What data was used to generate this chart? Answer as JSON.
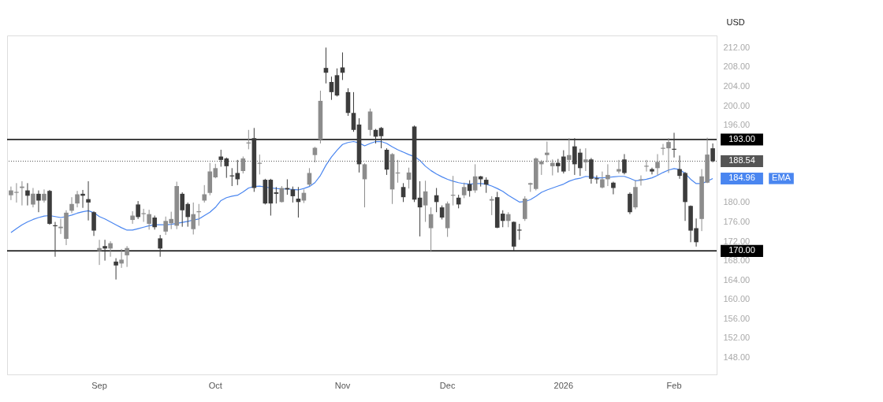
{
  "chart_data": {
    "type": "candlestick",
    "ylabel": "USD",
    "categories": [
      null,
      null,
      null,
      null,
      null,
      null,
      null,
      null,
      null,
      null,
      null,
      null,
      null,
      null,
      null,
      null,
      "Sep",
      null,
      null,
      null,
      null,
      null,
      null,
      null,
      null,
      null,
      null,
      null,
      null,
      null,
      null,
      null,
      null,
      null,
      null,
      null,
      null,
      "Oct",
      null,
      null,
      null,
      null,
      null,
      null,
      null,
      null,
      null,
      null,
      null,
      null,
      null,
      null,
      null,
      null,
      null,
      null,
      null,
      null,
      null,
      null,
      "Nov",
      null,
      null,
      null,
      null,
      null,
      null,
      null,
      null,
      null,
      null,
      null,
      null,
      null,
      null,
      null,
      null,
      null,
      null,
      "Dec",
      null,
      null,
      null,
      null,
      null,
      null,
      null,
      null,
      null,
      null,
      null,
      null,
      null,
      null,
      null,
      null,
      null,
      null,
      null,
      null,
      "2026",
      null,
      null,
      null,
      null,
      null,
      null,
      null,
      null,
      null,
      null,
      null,
      null,
      null,
      null,
      null,
      null,
      null,
      null,
      null,
      "Feb",
      null,
      null,
      null,
      null,
      null,
      null,
      null
    ],
    "ohlc": [
      [
        181.5,
        183.3,
        180.5,
        182.5
      ],
      [
        182,
        184,
        180,
        182.2
      ],
      [
        183,
        184.4,
        179.4,
        183.3
      ],
      [
        182.5,
        184,
        179.4,
        181.4
      ],
      [
        179.6,
        183,
        179,
        181.8
      ],
      [
        181.8,
        182.5,
        178,
        180.4
      ],
      [
        180.4,
        182.7,
        180,
        181.8
      ],
      [
        182.4,
        182.6,
        175.4,
        175.6
      ],
      [
        175.3,
        176,
        168.8,
        175.1
      ],
      [
        174.7,
        176.6,
        173.5,
        175
      ],
      [
        172.5,
        178.4,
        171.2,
        177.9
      ],
      [
        178.3,
        181.1,
        177.8,
        179.7
      ],
      [
        179.8,
        182.4,
        179,
        181.7
      ],
      [
        181.8,
        182.6,
        178.9,
        181.4
      ],
      [
        180.7,
        184.4,
        176.3,
        180
      ],
      [
        178,
        178.2,
        173.1,
        174.2
      ],
      [
        170,
        172.3,
        167.1,
        170.6
      ],
      [
        171,
        172.3,
        168,
        170.5
      ],
      [
        170.5,
        172,
        168.8,
        171.6
      ],
      [
        167.8,
        168.5,
        164.1,
        167
      ],
      [
        167.4,
        170.4,
        166.5,
        168.2
      ],
      [
        169.1,
        171,
        166.7,
        170.6
      ],
      [
        176.4,
        178.2,
        175.6,
        177.3
      ],
      [
        179.6,
        180.3,
        176.6,
        177
      ],
      [
        177.6,
        178.7,
        176,
        177.8
      ],
      [
        175.6,
        178.5,
        174.4,
        177.6
      ],
      [
        176.9,
        177.3,
        174.4,
        174.9
      ],
      [
        172.6,
        173.3,
        168.8,
        170.5
      ],
      [
        174,
        177.1,
        173.3,
        176.2
      ],
      [
        175.7,
        178.1,
        174.5,
        176.6
      ],
      [
        175.2,
        184.3,
        174.5,
        183.4
      ],
      [
        181.8,
        182.1,
        175,
        178.4
      ],
      [
        179.7,
        180,
        175,
        177
      ],
      [
        174.5,
        180,
        173.4,
        177.6
      ],
      [
        178,
        179.7,
        175.2,
        178.2
      ],
      [
        180.4,
        183.6,
        180,
        181.7
      ],
      [
        182,
        188.2,
        181.5,
        186.4
      ],
      [
        185.2,
        188,
        185,
        187.1
      ],
      [
        189.5,
        190.9,
        187.4,
        188.8
      ],
      [
        189.1,
        189.3,
        185.1,
        187.5
      ],
      [
        185.6,
        187.1,
        183.4,
        185.4
      ],
      [
        186.1,
        188.8,
        183.6,
        184.8
      ],
      [
        186.5,
        189.5,
        186,
        189.1
      ],
      [
        192.2,
        195,
        191,
        192.4
      ],
      [
        193.3,
        195.4,
        182.2,
        183
      ],
      [
        188,
        189.9,
        185.8,
        188.2
      ],
      [
        184.7,
        184.9,
        179.6,
        179.8
      ],
      [
        184.7,
        184.9,
        177.3,
        179.8
      ],
      [
        182.1,
        183.2,
        179.8,
        181.8
      ],
      [
        180.1,
        183.4,
        180,
        183
      ],
      [
        183,
        184.8,
        181.6,
        182.7
      ],
      [
        182.7,
        183.3,
        180,
        181.3
      ],
      [
        180.8,
        183.2,
        176.9,
        180.1
      ],
      [
        180.4,
        182.7,
        179.9,
        182
      ],
      [
        183.7,
        187.1,
        183.4,
        186.1
      ],
      [
        189.8,
        191.5,
        188.3,
        191.3
      ],
      [
        193,
        203.1,
        192.2,
        201
      ],
      [
        207.8,
        212,
        204.6,
        206.8
      ],
      [
        204.9,
        206,
        201.2,
        202.8
      ],
      [
        206.3,
        207.7,
        201.9,
        202.1
      ],
      [
        207.9,
        211,
        205.3,
        206.8
      ],
      [
        202.8,
        203.6,
        197.9,
        198.5
      ],
      [
        198.5,
        202.8,
        194.6,
        195
      ],
      [
        196.1,
        197.4,
        186.2,
        187.9
      ],
      [
        184.8,
        188.1,
        179,
        187.9
      ],
      [
        195,
        199.4,
        193.8,
        198.8
      ],
      [
        195,
        195.2,
        192.2,
        193.6
      ],
      [
        195.4,
        195.6,
        191.2,
        193.7
      ],
      [
        190.9,
        191.2,
        185.7,
        186.8
      ],
      [
        182.7,
        190.2,
        179.7,
        190
      ],
      [
        186,
        188.8,
        184.1,
        186.2
      ],
      [
        183.2,
        184,
        180.1,
        181.1
      ],
      [
        184.7,
        187.2,
        182.9,
        186.2
      ],
      [
        195.7,
        195.9,
        180.1,
        180.6
      ],
      [
        181,
        184.4,
        173,
        179
      ],
      [
        179.4,
        184.5,
        176,
        182.3
      ],
      [
        174.7,
        179,
        169.8,
        177.6
      ],
      [
        181.5,
        183,
        178,
        180.1
      ],
      [
        179,
        179.4,
        176.5,
        176.9
      ],
      [
        174.7,
        180.2,
        172.9,
        179.8
      ],
      [
        181.4,
        185.5,
        179.4,
        181.6
      ],
      [
        181,
        181.6,
        178.8,
        179.6
      ],
      [
        181.5,
        184.1,
        180.9,
        183.2
      ],
      [
        183.8,
        184.6,
        181.2,
        182.4
      ],
      [
        182.5,
        187.9,
        182,
        185.4
      ],
      [
        185.4,
        185.5,
        183.3,
        184.8
      ],
      [
        184.7,
        185.2,
        182,
        183.7
      ],
      [
        180.4,
        181.3,
        177.4,
        180.7
      ],
      [
        181.1,
        182.2,
        174.7,
        174.8
      ],
      [
        177.7,
        178.4,
        174.9,
        176.2
      ],
      [
        176.2,
        178,
        174.9,
        177.6
      ],
      [
        176,
        176.1,
        170.1,
        170.9
      ],
      [
        174.4,
        175.6,
        172.3,
        174.2
      ],
      [
        176.6,
        181.3,
        176.2,
        180.8
      ],
      [
        183.7,
        184.1,
        182.2,
        184
      ],
      [
        182.8,
        189.3,
        182.5,
        189.1
      ],
      [
        187.9,
        188.8,
        185.7,
        188.5
      ],
      [
        189.8,
        192.6,
        188.3,
        190.3
      ],
      [
        187.5,
        188.9,
        185.6,
        188.2
      ],
      [
        188.2,
        189,
        186.2,
        187.5
      ],
      [
        189.5,
        190.8,
        186,
        186.4
      ],
      [
        188.8,
        193.3,
        186.5,
        189.8
      ],
      [
        191.6,
        193.3,
        185.7,
        187.9
      ],
      [
        190.3,
        191.1,
        185.5,
        187.1
      ],
      [
        188.3,
        191.2,
        186.5,
        188.9
      ],
      [
        188.9,
        189.2,
        183.9,
        184.9
      ],
      [
        185,
        185.6,
        183.9,
        184.8
      ],
      [
        183.1,
        186.4,
        182.9,
        184.8
      ],
      [
        184.8,
        187.9,
        183.4,
        185.7
      ],
      [
        184.1,
        184.3,
        181.7,
        183
      ],
      [
        186.4,
        188.8,
        186,
        186.9
      ],
      [
        188.9,
        190,
        185.8,
        186.1
      ],
      [
        181.8,
        182.1,
        177.6,
        178
      ],
      [
        179,
        184.6,
        178.6,
        183.2
      ],
      [
        184.6,
        185.6,
        183.5,
        184.8
      ],
      [
        187.4,
        188.8,
        186.4,
        187.6
      ],
      [
        186.9,
        187.2,
        185.8,
        186.4
      ],
      [
        187.1,
        190,
        185.7,
        188.4
      ],
      [
        191.1,
        192.1,
        189.8,
        191.3
      ],
      [
        191.2,
        193.3,
        186.1,
        192.5
      ],
      [
        191.1,
        194.4,
        189.3,
        190.9
      ],
      [
        186.9,
        189.7,
        184.9,
        185.5
      ],
      [
        186.1,
        186.3,
        176.2,
        180.1
      ],
      [
        179.3,
        179.4,
        171.8,
        174.2
      ],
      [
        174.7,
        176.7,
        170.9,
        171.8
      ],
      [
        176.6,
        186.9,
        174.1,
        185.4
      ],
      [
        184.1,
        193.4,
        184,
        189.9
      ],
      [
        191.2,
        192.2,
        188.3,
        188.54
      ]
    ],
    "colors": [
      "#8c8c8c",
      "#8c8c8c",
      "#8c8c8c",
      "#3c3c3c",
      "#8c8c8c",
      "#3c3c3c",
      "#8c8c8c",
      "#3c3c3c",
      "#3c3c3c",
      "#8c8c8c",
      "#8c8c8c",
      "#8c8c8c",
      "#8c8c8c",
      "#3c3c3c",
      "#3c3c3c",
      "#3c3c3c",
      "#8c8c8c",
      "#3c3c3c",
      "#8c8c8c",
      "#3c3c3c",
      "#8c8c8c",
      "#8c8c8c",
      "#8c8c8c",
      "#3c3c3c",
      "#8c8c8c",
      "#8c8c8c",
      "#3c3c3c",
      "#3c3c3c",
      "#8c8c8c",
      "#8c8c8c",
      "#8c8c8c",
      "#3c3c3c",
      "#3c3c3c",
      "#8c8c8c",
      "#8c8c8c",
      "#8c8c8c",
      "#8c8c8c",
      "#8c8c8c",
      "#3c3c3c",
      "#3c3c3c",
      "#3c3c3c",
      "#3c3c3c",
      "#8c8c8c",
      "#8c8c8c",
      "#3c3c3c",
      "#8c8c8c",
      "#3c3c3c",
      "#3c3c3c",
      "#3c3c3c",
      "#8c8c8c",
      "#3c3c3c",
      "#3c3c3c",
      "#3c3c3c",
      "#8c8c8c",
      "#8c8c8c",
      "#8c8c8c",
      "#8c8c8c",
      "#3c3c3c",
      "#3c3c3c",
      "#3c3c3c",
      "#3c3c3c",
      "#3c3c3c",
      "#3c3c3c",
      "#3c3c3c",
      "#8c8c8c",
      "#8c8c8c",
      "#3c3c3c",
      "#3c3c3c",
      "#3c3c3c",
      "#8c8c8c",
      "#8c8c8c",
      "#3c3c3c",
      "#8c8c8c",
      "#3c3c3c",
      "#3c3c3c",
      "#8c8c8c",
      "#8c8c8c",
      "#3c3c3c",
      "#3c3c3c",
      "#8c8c8c",
      "#8c8c8c",
      "#3c3c3c",
      "#8c8c8c",
      "#3c3c3c",
      "#8c8c8c",
      "#3c3c3c",
      "#3c3c3c",
      "#8c8c8c",
      "#3c3c3c",
      "#3c3c3c",
      "#8c8c8c",
      "#3c3c3c",
      "#3c3c3c",
      "#8c8c8c",
      "#8c8c8c",
      "#8c8c8c",
      "#8c8c8c",
      "#8c8c8c",
      "#8c8c8c",
      "#3c3c3c",
      "#3c3c3c",
      "#8c8c8c",
      "#3c3c3c",
      "#3c3c3c",
      "#8c8c8c",
      "#3c3c3c",
      "#3c3c3c",
      "#8c8c8c",
      "#8c8c8c",
      "#3c3c3c",
      "#8c8c8c",
      "#3c3c3c",
      "#3c3c3c",
      "#8c8c8c",
      "#8c8c8c",
      "#8c8c8c",
      "#3c3c3c",
      "#8c8c8c",
      "#8c8c8c",
      "#8c8c8c",
      "#3c3c3c",
      "#3c3c3c",
      "#3c3c3c",
      "#3c3c3c",
      "#3c3c3c",
      "#8c8c8c",
      "#8c8c8c",
      "#3c3c3c"
    ],
    "series": [
      {
        "name": "EMA",
        "type": "line",
        "color": "#4a86f0",
        "values": [
          173.8,
          174.6,
          175.4,
          176,
          176.5,
          176.9,
          177.2,
          177.3,
          177.1,
          176.9,
          177.1,
          177.4,
          177.8,
          178.1,
          178.3,
          177.9,
          177.1,
          176.6,
          176,
          175.4,
          174.8,
          174.3,
          174.3,
          174.6,
          174.9,
          175.2,
          175.4,
          175.4,
          175.4,
          175.5,
          175.7,
          175.9,
          176.1,
          176.4,
          176.6,
          177.3,
          178,
          179,
          180.4,
          181,
          181.3,
          181.5,
          182.2,
          183,
          183.3,
          183.4,
          183.2,
          183,
          182.9,
          182.8,
          182.8,
          182.7,
          182.6,
          182.9,
          183.3,
          184.1,
          185.6,
          187.7,
          189.4,
          190.8,
          192,
          192.4,
          192.6,
          192.3,
          191.7,
          192.2,
          192.6,
          192.6,
          192.2,
          191.5,
          190.9,
          190.4,
          189.9,
          189.5,
          188.7,
          187.5,
          186.6,
          185.9,
          185.3,
          184.8,
          184.4,
          184.1,
          183.9,
          183.8,
          183.9,
          183.9,
          183.8,
          183.4,
          182.9,
          182.3,
          181.5,
          180.8,
          180.1,
          180.2,
          180.6,
          181.3,
          182.1,
          182.6,
          183,
          183.4,
          183.8,
          184.4,
          184.8,
          185,
          185.4,
          185.3,
          185.1,
          185.1,
          185.2,
          185.3,
          185.4,
          185.4,
          185,
          184.5,
          184.6,
          184.8,
          185.1,
          185.6,
          186.2,
          186.7,
          187,
          186.8,
          186,
          184.8,
          183.9,
          183.9,
          184.4,
          184.96
        ]
      }
    ],
    "ylim": [
      144.5,
      214.5
    ],
    "yticks": [
      {
        "value": 148,
        "label": "148.00"
      },
      {
        "value": 152,
        "label": "152.00"
      },
      {
        "value": 156,
        "label": "156.00"
      },
      {
        "value": 160,
        "label": "160.00"
      },
      {
        "value": 164,
        "label": "164.00"
      },
      {
        "value": 168,
        "label": "168.00"
      },
      {
        "value": 172,
        "label": "172.00"
      },
      {
        "value": 176,
        "label": "176.00"
      },
      {
        "value": 180,
        "label": "180.00"
      },
      {
        "value": 196,
        "label": "196.00"
      },
      {
        "value": 200,
        "label": "200.00"
      },
      {
        "value": 204,
        "label": "204.00"
      },
      {
        "value": 208,
        "label": "208.00"
      },
      {
        "value": 212,
        "label": "212.00"
      }
    ],
    "ref_lines": [
      {
        "axis": "y",
        "value": 193,
        "label": "193.00",
        "color": "#000000",
        "line_style": "solid"
      },
      {
        "axis": "y",
        "value": 170,
        "label": "170.00",
        "color": "#000000",
        "line_style": "solid"
      },
      {
        "axis": "y",
        "value": 188.54,
        "label": "188.54",
        "color": "#555555",
        "line_style": "dotted"
      }
    ],
    "annotations": [
      "184.96"
    ]
  }
}
